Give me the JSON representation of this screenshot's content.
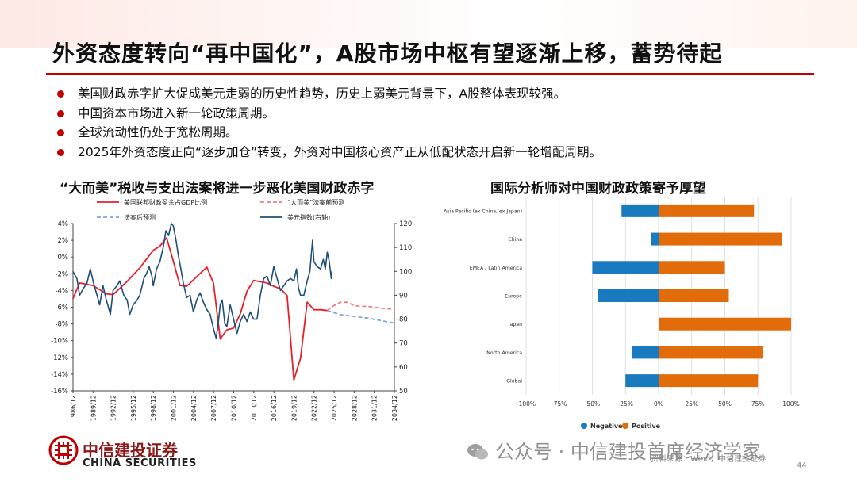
{
  "title": "外资态度转向“再中国化”，A股市场中枢有望逐渐上移，蓄势待起",
  "bullets": [
    "美国财政赤字扩大促成美元走弱的历史性趋势，历史上弱美元背景下，A股整体表现较强。",
    "中国资本市场进入新一轮政策周期。",
    "全球流动性仍处于宽松周期。",
    "2025年外资态度正向“逐步加仓”转变，外资对中国核心资产正从低配状态开启新一轮增配周期。"
  ],
  "colors": {
    "accent": "#c00000",
    "dxy": "#1f4e79",
    "deficit": "#e8202a",
    "pre_bill": "#f08080",
    "post_bill": "#7fa7d6",
    "negative": "#1a7abf",
    "positive": "#e36c0a"
  },
  "chart_data": [
    {
      "type": "line",
      "title": "“大而美”税收与支出法案将进一步恶化美国财政赤字",
      "x_ticks": [
        "1986/12",
        "1989/12",
        "1992/12",
        "1995/12",
        "1998/12",
        "2001/12",
        "2004/12",
        "2007/12",
        "2010/12",
        "2013/12",
        "2016/12",
        "2019/12",
        "2022/12",
        "2025/12",
        "2028/12",
        "2031/12",
        "2034/12"
      ],
      "xlim": [
        1986.92,
        2034.92
      ],
      "y_left": {
        "ticks": [
          "4%",
          "2%",
          "0%",
          "-2%",
          "-4%",
          "-6%",
          "-8%",
          "-10%",
          "-12%",
          "-14%",
          "-16%"
        ],
        "lim": [
          -16,
          4
        ]
      },
      "y_right": {
        "ticks": [
          "120",
          "110",
          "100",
          "90",
          "80",
          "70",
          "60",
          "50"
        ],
        "lim": [
          50,
          120
        ]
      },
      "series": [
        {
          "name": "美国联邦财政盈余占GDP比例",
          "axis": "left",
          "style": "solid",
          "color": "#e8202a",
          "points": [
            [
              1986.9,
              -5.0
            ],
            [
              1987.9,
              -3.1
            ],
            [
              1989.9,
              -3.4
            ],
            [
              1991.9,
              -4.4
            ],
            [
              1992.9,
              -4.5
            ],
            [
              1994.9,
              -3.0
            ],
            [
              1996.9,
              -1.3
            ],
            [
              1998.9,
              0.8
            ],
            [
              1999.9,
              1.3
            ],
            [
              2000.9,
              2.3
            ],
            [
              2001.9,
              -0.5
            ],
            [
              2002.9,
              -3.4
            ],
            [
              2003.9,
              -3.5
            ],
            [
              2006.9,
              -1.2
            ],
            [
              2007.9,
              -3.1
            ],
            [
              2008.9,
              -9.8
            ],
            [
              2009.9,
              -8.7
            ],
            [
              2010.9,
              -8.5
            ],
            [
              2011.9,
              -6.8
            ],
            [
              2012.9,
              -4.1
            ],
            [
              2013.9,
              -2.8
            ],
            [
              2015.9,
              -3.1
            ],
            [
              2016.9,
              -3.5
            ],
            [
              2017.9,
              -3.8
            ],
            [
              2018.9,
              -4.6
            ],
            [
              2019.9,
              -14.7
            ],
            [
              2020.9,
              -12.1
            ],
            [
              2021.9,
              -5.4
            ],
            [
              2022.9,
              -6.3
            ],
            [
              2023.9,
              -6.3
            ],
            [
              2024.9,
              -6.4
            ]
          ]
        },
        {
          "name": "“大而美”法案前预测",
          "axis": "left",
          "style": "dashed",
          "color": "#f08080",
          "points": [
            [
              2024.9,
              -6.4
            ],
            [
              2025.9,
              -5.8
            ],
            [
              2026.9,
              -5.4
            ],
            [
              2027.9,
              -5.4
            ],
            [
              2028.9,
              -5.8
            ],
            [
              2029.9,
              -5.9
            ],
            [
              2030.9,
              -5.9
            ],
            [
              2031.9,
              -6.0
            ],
            [
              2032.9,
              -6.1
            ],
            [
              2033.9,
              -6.2
            ],
            [
              2034.9,
              -6.2
            ]
          ]
        },
        {
          "name": "法案后预测",
          "axis": "left",
          "style": "dashed",
          "color": "#7fa7d6",
          "points": [
            [
              2024.9,
              -6.4
            ],
            [
              2026.9,
              -6.9
            ],
            [
              2028.9,
              -7.1
            ],
            [
              2030.9,
              -7.3
            ],
            [
              2032.9,
              -7.6
            ],
            [
              2034.9,
              -7.9
            ]
          ]
        },
        {
          "name": "美元指数(右轴)",
          "axis": "right",
          "style": "solid",
          "color": "#1f4e79",
          "points": [
            [
              1986.9,
              100
            ],
            [
              1987.5,
              97
            ],
            [
              1987.9,
              90
            ],
            [
              1988.5,
              93
            ],
            [
              1989.0,
              95
            ],
            [
              1989.5,
              101
            ],
            [
              1990.0,
              95
            ],
            [
              1990.5,
              90
            ],
            [
              1990.9,
              86
            ],
            [
              1991.4,
              94
            ],
            [
              1991.9,
              88
            ],
            [
              1992.5,
              82
            ],
            [
              1992.9,
              92
            ],
            [
              1993.5,
              94
            ],
            [
              1993.9,
              96
            ],
            [
              1994.5,
              90
            ],
            [
              1995.0,
              88
            ],
            [
              1995.4,
              82
            ],
            [
              1995.9,
              86
            ],
            [
              1996.5,
              88
            ],
            [
              1996.9,
              90
            ],
            [
              1997.5,
              97
            ],
            [
              1997.9,
              99
            ],
            [
              1998.3,
              102
            ],
            [
              1998.7,
              98
            ],
            [
              1998.9,
              94
            ],
            [
              1999.4,
              101
            ],
            [
              1999.9,
              104
            ],
            [
              2000.4,
              110
            ],
            [
              2000.8,
              117
            ],
            [
              2001.2,
              115
            ],
            [
              2001.6,
              120
            ],
            [
              2001.9,
              119
            ],
            [
              2002.3,
              113
            ],
            [
              2002.7,
              106
            ],
            [
              2002.9,
              103
            ],
            [
              2003.4,
              95
            ],
            [
              2003.9,
              89
            ],
            [
              2004.4,
              90
            ],
            [
              2004.9,
              83
            ],
            [
              2005.4,
              88
            ],
            [
              2005.9,
              91
            ],
            [
              2006.4,
              87
            ],
            [
              2006.9,
              84
            ],
            [
              2007.4,
              82
            ],
            [
              2007.9,
              76
            ],
            [
              2008.3,
              72
            ],
            [
              2008.6,
              78
            ],
            [
              2008.9,
              86
            ],
            [
              2009.2,
              88
            ],
            [
              2009.6,
              78
            ],
            [
              2009.9,
              77
            ],
            [
              2010.4,
              86
            ],
            [
              2010.9,
              80
            ],
            [
              2011.4,
              74
            ],
            [
              2011.9,
              79
            ],
            [
              2012.4,
              82
            ],
            [
              2012.9,
              79
            ],
            [
              2013.4,
              83
            ],
            [
              2013.9,
              80
            ],
            [
              2014.4,
              80
            ],
            [
              2014.9,
              90
            ],
            [
              2015.4,
              97
            ],
            [
              2015.9,
              98
            ],
            [
              2016.4,
              94
            ],
            [
              2016.9,
              102
            ],
            [
              2017.4,
              97
            ],
            [
              2017.9,
              92
            ],
            [
              2018.4,
              94
            ],
            [
              2018.9,
              96
            ],
            [
              2019.4,
              97
            ],
            [
              2019.9,
              96
            ],
            [
              2020.3,
              101
            ],
            [
              2020.6,
              93
            ],
            [
              2020.9,
              90
            ],
            [
              2021.4,
              90
            ],
            [
              2021.9,
              96
            ],
            [
              2022.3,
              100
            ],
            [
              2022.7,
              113
            ],
            [
              2022.9,
              104
            ],
            [
              2023.4,
              102
            ],
            [
              2023.9,
              101
            ],
            [
              2024.3,
              105
            ],
            [
              2024.6,
              101
            ],
            [
              2024.9,
              108
            ],
            [
              2025.2,
              104
            ],
            [
              2025.5,
              97
            ],
            [
              2025.6,
              100
            ]
          ]
        }
      ]
    },
    {
      "type": "bar",
      "orientation": "horizontal",
      "stacked": "diverging",
      "title": "国际分析师对中国财政政策寄予厚望",
      "categories": [
        "Asia Pacific (ex China, ex Japan)",
        "China",
        "EMEA / Latin America",
        "Europe",
        "Japan",
        "North America",
        "Global"
      ],
      "series": [
        {
          "name": "Negative",
          "color": "#1a7abf",
          "values": [
            -28,
            -6,
            -50,
            -46,
            0,
            -20,
            -25
          ]
        },
        {
          "name": "Positive",
          "color": "#e36c0a",
          "values": [
            72,
            93,
            50,
            53,
            100,
            79,
            75
          ]
        }
      ],
      "x_ticks": [
        "-100%",
        "-75%",
        "-50%",
        "-25%",
        "0%",
        "25%",
        "50%",
        "75%",
        "100%"
      ],
      "xlim": [
        -100,
        100
      ],
      "legend": "bottom"
    }
  ],
  "footer": {
    "logo_cn": "中信建投证券",
    "logo_en": "CHINA SECURITIES",
    "watermark": "公众号 · 中信建投首席经济学家",
    "source": "资料来源：Wind，中信建投证券",
    "page": "44"
  }
}
